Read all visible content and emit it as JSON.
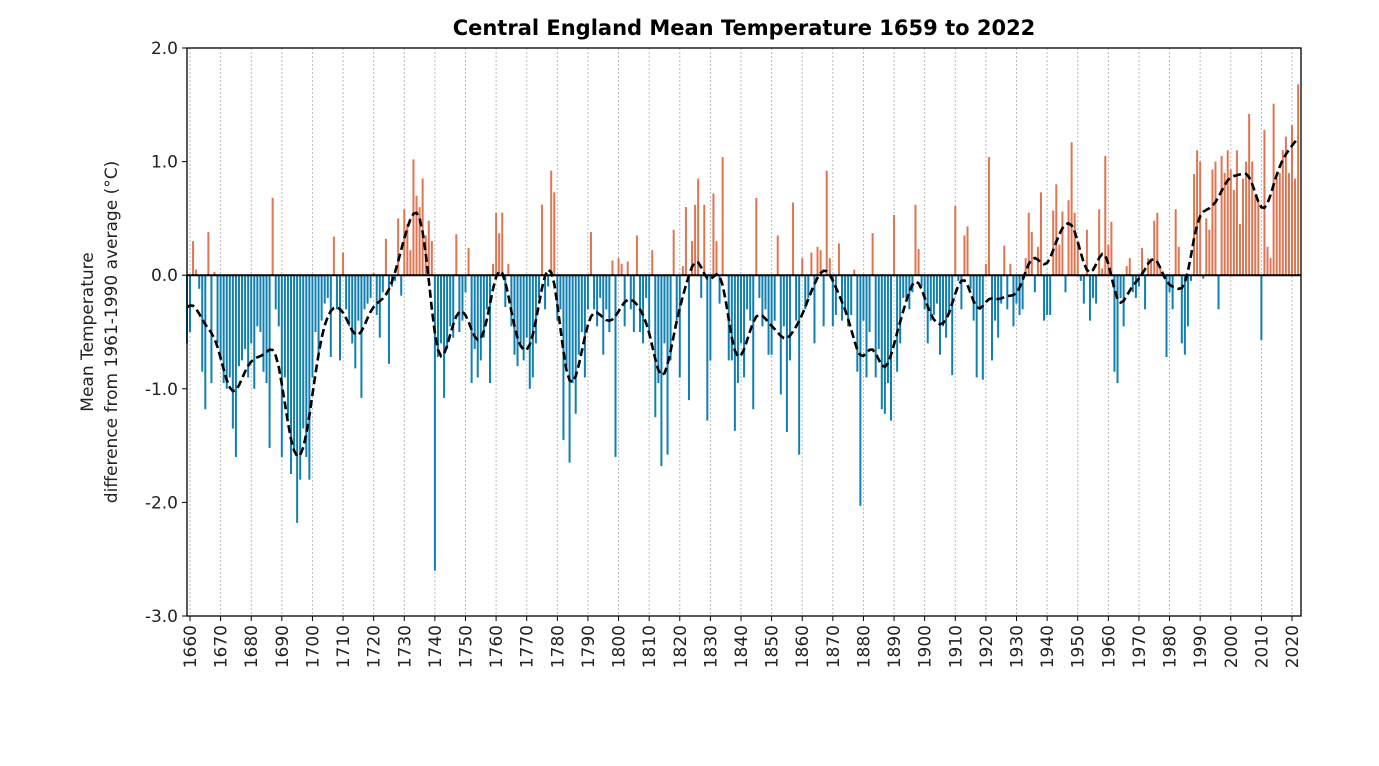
{
  "chart_data": {
    "type": "bar",
    "title": "Central England Mean Temperature 1659 to 2022",
    "ylabel_lines": [
      "Mean Temperature",
      "difference from 1961-1990 average (°C)"
    ],
    "xlabel": "",
    "ylim": [
      -3.0,
      2.0
    ],
    "yticks": [
      "2.0",
      "1.0",
      "0.0",
      "-1.0",
      "-2.0",
      "-3.0"
    ],
    "xticks": [
      "1660",
      "1670",
      "1680",
      "1690",
      "1700",
      "1710",
      "1720",
      "1730",
      "1740",
      "1750",
      "1760",
      "1770",
      "1780",
      "1790",
      "1800",
      "1810",
      "1820",
      "1830",
      "1840",
      "1850",
      "1860",
      "1870",
      "1880",
      "1890",
      "1900",
      "1910",
      "1920",
      "1930",
      "1940",
      "1950",
      "1960",
      "1970",
      "1980",
      "1990",
      "2000",
      "2010",
      "2020"
    ],
    "x_start": 1659,
    "x_end": 2022,
    "grid": "vertical dotted at decade ticks",
    "colors": {
      "positive": "#e07552",
      "negative": "#0f80b0",
      "smoothed": "#000000"
    },
    "smoothed_line": "black dashed",
    "values": [
      -0.6,
      -0.5,
      0.3,
      0.05,
      -0.12,
      -0.85,
      -1.18,
      0.38,
      -0.95,
      0.03,
      -0.6,
      -0.75,
      -0.95,
      -1.0,
      -0.9,
      -1.35,
      -1.6,
      -0.8,
      -0.75,
      -0.65,
      -0.9,
      -0.6,
      -1.0,
      -0.45,
      -0.5,
      -0.85,
      -0.95,
      -1.52,
      0.68,
      -0.3,
      -0.45,
      -1.6,
      -0.9,
      -1.25,
      -1.75,
      -1.55,
      -2.18,
      -1.8,
      -1.35,
      -1.6,
      -1.8,
      -0.9,
      -0.5,
      -0.7,
      -0.4,
      -0.25,
      -0.2,
      -0.72,
      0.34,
      -0.3,
      -0.75,
      0.2,
      -0.3,
      -0.45,
      -0.6,
      -0.82,
      -0.4,
      -1.08,
      -0.3,
      -0.25,
      -0.2,
      0.02,
      -0.35,
      -0.55,
      -0.15,
      0.32,
      -0.78,
      -0.1,
      -0.05,
      0.5,
      -0.18,
      0.58,
      0.45,
      0.22,
      1.02,
      0.7,
      0.6,
      0.85,
      0.35,
      0.48,
      0.3,
      -2.6,
      -0.72,
      -0.6,
      -1.08,
      -0.65,
      -0.45,
      -0.55,
      0.36,
      -0.5,
      -0.4,
      -0.15,
      0.24,
      -0.95,
      -0.65,
      -0.9,
      -0.75,
      -0.55,
      -0.3,
      -0.95,
      0.1,
      0.55,
      0.37,
      0.55,
      -0.28,
      0.1,
      -0.45,
      -0.7,
      -0.8,
      -0.6,
      -0.75,
      -0.55,
      -1.0,
      -0.9,
      -0.6,
      -0.2,
      0.62,
      -0.3,
      -0.1,
      0.92,
      0.73,
      -0.4,
      -0.3,
      -1.45,
      -0.8,
      -1.65,
      -0.95,
      -1.22,
      -0.7,
      -0.5,
      -0.9,
      -0.3,
      0.38,
      -0.3,
      -0.45,
      -0.2,
      -0.7,
      -0.3,
      -0.5,
      0.13,
      -1.6,
      0.15,
      0.1,
      -0.45,
      0.12,
      -0.3,
      -0.5,
      0.35,
      -0.5,
      -0.6,
      -0.2,
      -0.5,
      0.22,
      -1.25,
      -0.95,
      -1.68,
      -0.6,
      -1.58,
      -0.75,
      0.4,
      -0.4,
      -0.9,
      0.08,
      0.6,
      -1.1,
      0.3,
      0.62,
      0.85,
      -0.2,
      0.62,
      -1.28,
      -0.75,
      0.72,
      0.3,
      -0.25,
      1.04,
      0.0,
      -0.75,
      -0.75,
      -1.37,
      -0.95,
      -0.6,
      -0.9,
      -0.3,
      -0.4,
      -1.18,
      0.68,
      -0.2,
      -0.45,
      -0.3,
      -0.7,
      -0.7,
      -0.4,
      0.35,
      -1.05,
      -0.45,
      -1.38,
      -0.75,
      0.64,
      -0.4,
      -1.58,
      0.15,
      -0.3,
      -0.2,
      0.2,
      -0.6,
      0.25,
      0.22,
      -0.45,
      0.92,
      0.15,
      -0.45,
      -0.35,
      0.28,
      -0.4,
      -0.3,
      -0.45,
      -0.35,
      0.05,
      -0.85,
      -2.03,
      -0.4,
      -0.9,
      -0.5,
      0.37,
      -0.9,
      -0.65,
      -1.18,
      -1.22,
      -0.95,
      -1.28,
      0.53,
      -0.85,
      -0.6,
      -0.2,
      -0.2,
      -0.3,
      -0.15,
      0.62,
      0.23,
      -0.1,
      -0.3,
      -0.6,
      -0.4,
      -0.35,
      -0.25,
      -0.7,
      -0.45,
      -0.55,
      -0.35,
      -0.88,
      0.61,
      -0.05,
      -0.3,
      0.35,
      0.43,
      -0.12,
      -0.4,
      -0.9,
      -0.3,
      -0.92,
      0.1,
      1.04,
      -0.75,
      -0.4,
      -0.55,
      -0.25,
      0.26,
      -0.3,
      0.1,
      -0.45,
      -0.25,
      -0.35,
      -0.3,
      0.15,
      0.55,
      0.38,
      -0.15,
      0.25,
      0.73,
      -0.4,
      -0.35,
      -0.35,
      0.57,
      0.8,
      0.27,
      0.56,
      -0.15,
      0.66,
      1.17,
      0.55,
      0.3,
      -0.05,
      -0.25,
      0.4,
      -0.4,
      -0.2,
      -0.25,
      0.58,
      0.06,
      1.05,
      0.27,
      0.47,
      -0.85,
      -0.95,
      -0.2,
      -0.45,
      0.08,
      0.15,
      -0.15,
      -0.2,
      -0.1,
      0.24,
      -0.3,
      0.15,
      0.13,
      0.48,
      0.55,
      0.07,
      0.02,
      -0.72,
      -0.15,
      -0.3,
      0.58,
      0.25,
      -0.6,
      -0.7,
      -0.45,
      -0.05,
      0.89,
      1.1,
      1.0,
      -0.03,
      0.5,
      0.4,
      0.93,
      1.0,
      -0.3,
      1.05,
      0.9,
      1.1,
      0.93,
      0.75,
      1.1,
      0.45,
      0.85,
      1.0,
      1.42,
      1.0,
      0.7,
      0.65,
      -0.57,
      1.28,
      0.25,
      0.15,
      1.51,
      0.85,
      0.9,
      1.1,
      1.22,
      0.9,
      1.32,
      0.85,
      1.68
    ]
  }
}
